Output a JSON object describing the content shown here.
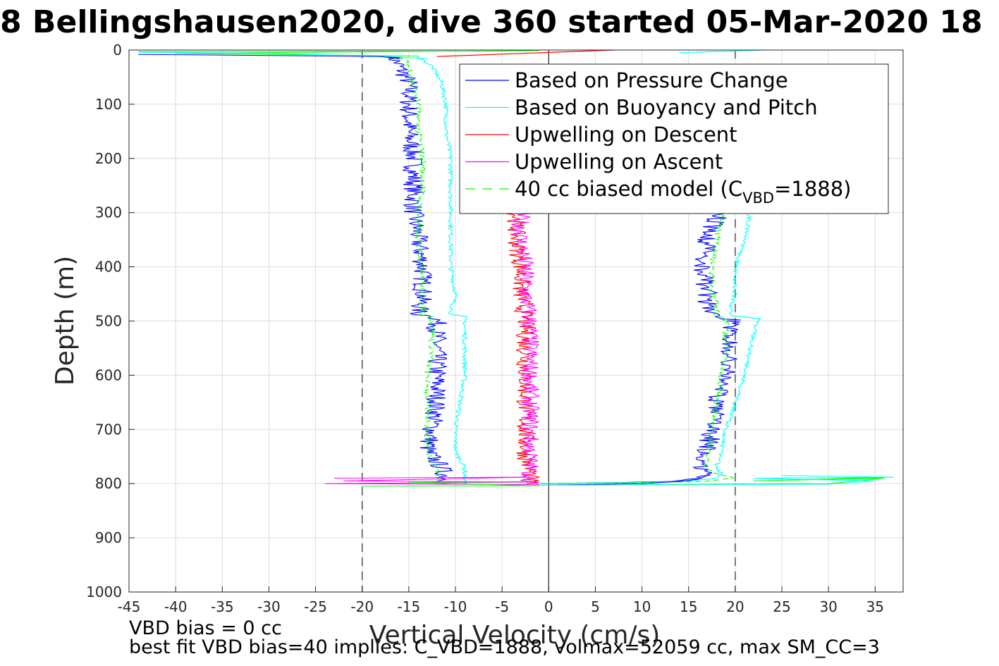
{
  "chart_data": {
    "type": "line",
    "title": "8 Bellingshausen2020, dive 360 started 05-Mar-2020 18",
    "xlabel": "Vertical Velocity (cm/s)",
    "ylabel": "Depth (m)",
    "xlim": [
      -45,
      38
    ],
    "ylim": [
      0,
      1000
    ],
    "y_reversed": true,
    "grid": true,
    "x_ticks": [
      -45,
      -40,
      -35,
      -30,
      -25,
      -20,
      -15,
      -10,
      -5,
      0,
      5,
      10,
      15,
      20,
      25,
      30,
      35
    ],
    "y_ticks": [
      0,
      100,
      200,
      300,
      400,
      500,
      600,
      700,
      800,
      900,
      1000
    ],
    "reference_lines": [
      {
        "x": -20,
        "style": "dashed"
      },
      {
        "x": 0,
        "style": "solid"
      },
      {
        "x": 20,
        "style": "dashed"
      }
    ],
    "legend": {
      "placement": "top-right",
      "entries": [
        {
          "label": "Based on Pressure Change",
          "color": "#0000ff"
        },
        {
          "label": "Based on Buoyancy and Pitch",
          "color": "#00ffff"
        },
        {
          "label": "Upwelling on Descent",
          "color": "#ff0000"
        },
        {
          "label": "Upwelling on Ascent",
          "color": "#ff00ff"
        },
        {
          "label_prefix": "40 cc biased model (C",
          "label_sub": "VBD",
          "label_suffix": "=1888)",
          "color": "#00ff00",
          "dashed": true
        }
      ]
    },
    "series": [
      {
        "name": "Based on Pressure Change",
        "color": "#0000ff",
        "descent": {
          "depth": [
            12,
            18,
            30,
            60,
            100,
            150,
            200,
            250,
            300,
            350,
            400,
            450,
            488,
            492,
            520,
            560,
            600,
            650,
            700,
            740,
            770,
            790,
            800
          ],
          "value": [
            -17,
            -16.5,
            -16,
            -15,
            -15,
            -15,
            -14.5,
            -14.5,
            -14.5,
            -14,
            -13.5,
            -13.5,
            -14,
            -12,
            -12,
            -12,
            -12,
            -12,
            -12.5,
            -13,
            -11.5,
            -11,
            -11
          ]
        },
        "ascent": {
          "depth": [
            800,
            797,
            790,
            780,
            770,
            740,
            700,
            650,
            600,
            560,
            520,
            495,
            490,
            470,
            450,
            400,
            350,
            310,
            300
          ],
          "value": [
            -1,
            12,
            16,
            16.5,
            16.5,
            17,
            17.5,
            18,
            19,
            19.5,
            19.5,
            19.5,
            17.5,
            17,
            17,
            16.5,
            17,
            18,
            18
          ]
        }
      },
      {
        "name": "Based on Buoyancy and Pitch",
        "color": "#00ffff",
        "descent": {
          "depth": [
            12,
            18,
            30,
            60,
            100,
            150,
            200,
            250,
            300,
            350,
            400,
            450,
            488,
            492,
            520,
            560,
            600,
            650,
            700,
            740,
            770,
            790,
            800
          ],
          "value": [
            -14,
            -13.5,
            -12.5,
            -11.5,
            -11,
            -11,
            -10.5,
            -10.5,
            -10.5,
            -10.5,
            -10.5,
            -10,
            -10.5,
            -9,
            -9,
            -9,
            -9,
            -9.5,
            -10,
            -10,
            -9,
            -9,
            -9
          ]
        },
        "ascent": {
          "depth": [
            800,
            797,
            790,
            780,
            770,
            740,
            700,
            650,
            600,
            560,
            520,
            495,
            490,
            470,
            450,
            400,
            350,
            310,
            300
          ],
          "value": [
            -1,
            14,
            18,
            18.5,
            18,
            18.5,
            19,
            20,
            21,
            21.5,
            22,
            22.5,
            19.5,
            19.5,
            20,
            20,
            21,
            21.5,
            21.5
          ]
        }
      },
      {
        "name": "Upwelling on Descent",
        "color": "#ff0000",
        "depth": [
          300,
          350,
          400,
          450,
          500,
          550,
          600,
          650,
          700,
          750,
          780,
          800
        ],
        "value": [
          -3.5,
          -3.5,
          -3,
          -3,
          -2.5,
          -2.5,
          -2.5,
          -2.5,
          -2.5,
          -2.5,
          -2,
          -2
        ]
      },
      {
        "name": "Upwelling on Ascent",
        "color": "#ff00ff",
        "depth": [
          300,
          350,
          400,
          450,
          500,
          550,
          600,
          650,
          700,
          750,
          780,
          800
        ],
        "value": [
          -3,
          -3,
          -2.5,
          -2.5,
          -2,
          -2,
          -2,
          -2,
          -2,
          -2,
          -2,
          -2
        ]
      },
      {
        "name": "40 cc biased model (CVBD=1888)",
        "color": "#00ff00",
        "dashed": true,
        "descent": {
          "depth": [
            12,
            18,
            30,
            60,
            100,
            150,
            200,
            250,
            300,
            350,
            400,
            450,
            488,
            492,
            520,
            560,
            600,
            650,
            700,
            740,
            770,
            790,
            800
          ],
          "value": [
            -16,
            -15.5,
            -15,
            -14.5,
            -14,
            -14,
            -13.5,
            -13.5,
            -14,
            -14,
            -13.5,
            -13.5,
            -13.5,
            -12.5,
            -12.5,
            -12.5,
            -13,
            -13,
            -13,
            -13,
            -12,
            -12,
            -12
          ]
        },
        "ascent": {
          "depth": [
            800,
            797,
            790,
            780,
            770,
            740,
            700,
            650,
            600,
            560,
            520,
            495,
            490,
            470,
            450,
            400,
            350,
            310,
            300
          ],
          "value": [
            -1,
            16,
            20,
            17.5,
            17,
            17,
            17.5,
            18,
            18.5,
            19,
            19,
            19,
            18,
            18,
            17.5,
            17.5,
            18,
            18.5,
            18.5
          ]
        }
      }
    ],
    "near_surface_markers": [
      {
        "color": "#ff0000",
        "x": [
          -12,
          7
        ],
        "depth": [
          12,
          0
        ]
      },
      {
        "color": "#00ffff",
        "x": [
          14,
          23
        ],
        "depth": [
          5,
          0
        ]
      }
    ],
    "annotations": [
      "VBD bias = 0 cc",
      "best fit VBD bias=40 implies: C_VBD=1888, volmax=52059 cc, max SM_CC=3"
    ]
  }
}
